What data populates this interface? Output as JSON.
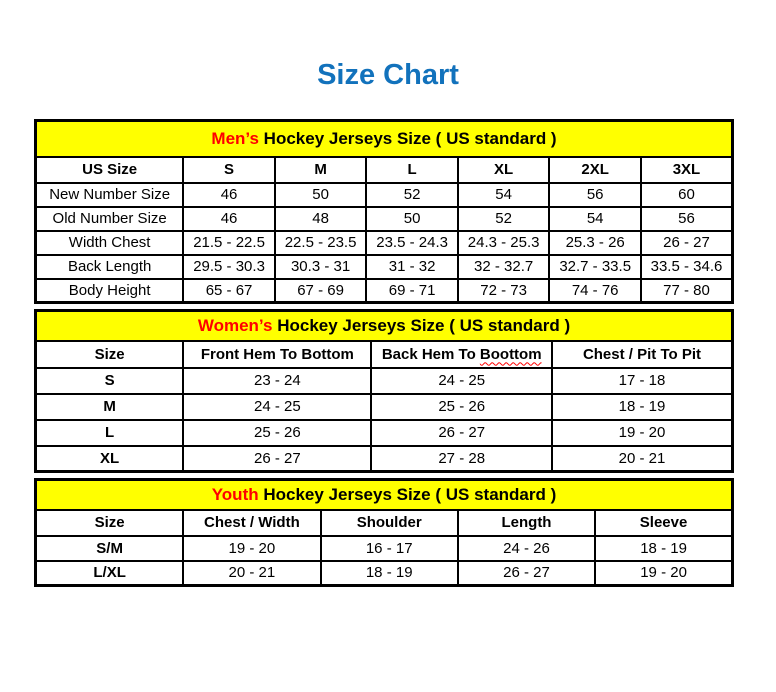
{
  "page": {
    "title": "Size Chart"
  },
  "colors": {
    "title_blue": "#1272bc",
    "band_background": "#ffff00",
    "accent_red": "#ff0000",
    "border": "#000000",
    "page_background": "#ffffff"
  },
  "tables": [
    {
      "id": "mens",
      "tall_band": true,
      "band": {
        "highlight": "Men’s",
        "rest": " Hockey Jerseys Size ( US standard )"
      },
      "columns": [
        "US Size",
        "S",
        "M",
        "L",
        "XL",
        "2XL",
        "3XL"
      ],
      "rows": [
        {
          "label": "New Number Size",
          "values": [
            "46",
            "50",
            "52",
            "54",
            "56",
            "60"
          ]
        },
        {
          "label": "Old Number Size",
          "values": [
            "46",
            "48",
            "50",
            "52",
            "54",
            "56"
          ]
        },
        {
          "label": "Width Chest",
          "values": [
            "21.5 - 22.5",
            "22.5 - 23.5",
            "23.5 - 24.3",
            "24.3 - 25.3",
            "25.3 - 26",
            "26 - 27"
          ]
        },
        {
          "label": "Back Length",
          "values": [
            "29.5 - 30.3",
            "30.3 - 31",
            "31 - 32",
            "32 - 32.7",
            "32.7 - 33.5",
            "33.5 - 34.6"
          ]
        },
        {
          "label": "Body Height",
          "values": [
            "65 - 67",
            "67 - 69",
            "69 - 71",
            "72 - 73",
            "74 - 76",
            "77 - 80"
          ]
        }
      ]
    },
    {
      "id": "womens",
      "tall_band": false,
      "band": {
        "highlight": "Women’s",
        "rest": " Hockey Jerseys Size ( US standard )"
      },
      "columns": [
        "Size",
        "Front Hem To Bottom",
        "Back Hem To Boottom",
        "Chest / Pit To Pit"
      ],
      "misspelled_word": "Boottom",
      "rows": [
        {
          "label": "S",
          "values": [
            "23 - 24",
            "24 - 25",
            "17 - 18"
          ]
        },
        {
          "label": "M",
          "values": [
            "24 - 25",
            "25 - 26",
            "18 - 19"
          ]
        },
        {
          "label": "L",
          "values": [
            "25 - 26",
            "26 - 27",
            "19 - 20"
          ]
        },
        {
          "label": "XL",
          "values": [
            "26 - 27",
            "27 - 28",
            "20 - 21"
          ]
        }
      ]
    },
    {
      "id": "youth",
      "tall_band": false,
      "band": {
        "highlight": "Youth",
        "rest": " Hockey Jerseys Size ( US standard )"
      },
      "columns": [
        "Size",
        "Chest / Width",
        "Shoulder",
        "Length",
        "Sleeve"
      ],
      "rows": [
        {
          "label": "S/M",
          "values": [
            "19 - 20",
            "16 - 17",
            "24 - 26",
            "18 - 19"
          ]
        },
        {
          "label": "L/XL",
          "values": [
            "20 - 21",
            "18 - 19",
            "26 - 27",
            "19 - 20"
          ]
        }
      ]
    }
  ]
}
